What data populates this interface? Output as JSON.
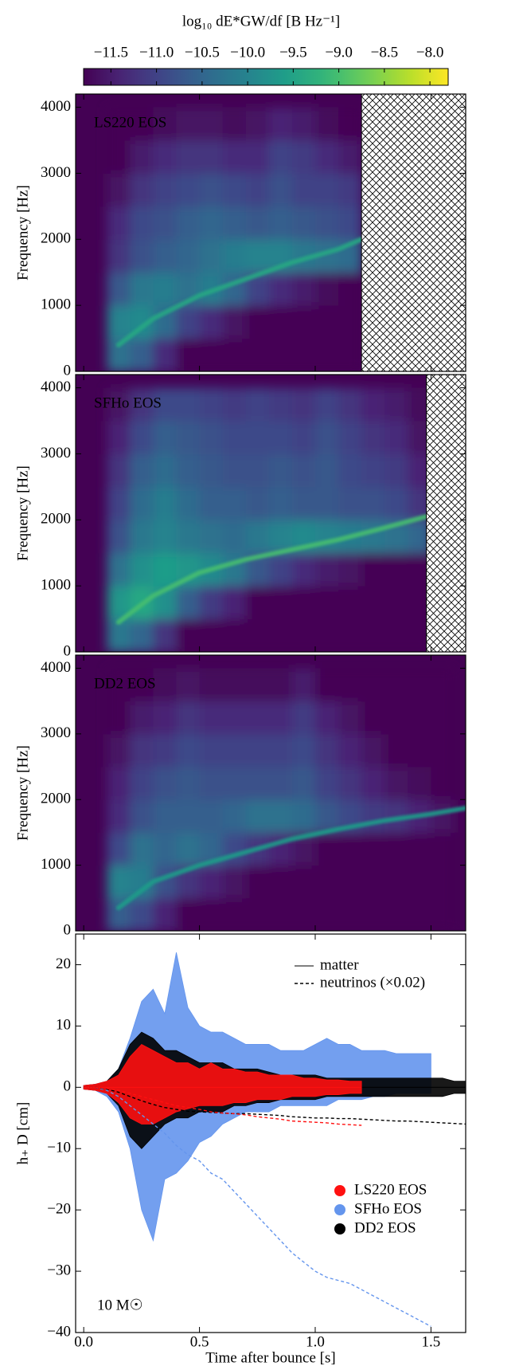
{
  "colorbar": {
    "label": "log₁₀ dE*GW/df [B Hz⁻¹]",
    "lim": [
      -11.8,
      -7.8
    ],
    "ticks": [
      {
        "value": -11.5,
        "label": "−11.5"
      },
      {
        "value": -11.0,
        "label": "−11.0"
      },
      {
        "value": -10.5,
        "label": "−10.5"
      },
      {
        "value": -10.0,
        "label": "−10.0"
      },
      {
        "value": -9.5,
        "label": "−9.5"
      },
      {
        "value": -9.0,
        "label": "−9.0"
      },
      {
        "value": -8.5,
        "label": "−8.5"
      },
      {
        "value": -8.0,
        "label": "−8.0"
      }
    ]
  },
  "chart_data": [
    {
      "type": "heatmap",
      "title": "LS220 EOS",
      "ylabel": "Frequency [Hz]",
      "xlim": [
        -0.035,
        1.65
      ],
      "xticks": [
        0,
        0.5,
        1,
        1.5
      ],
      "ylim": [
        0,
        4200
      ],
      "yticks": [
        0,
        1000,
        2000,
        3000,
        4000
      ],
      "x_bins": [
        0.1,
        0.2,
        0.3,
        0.4,
        0.5,
        0.6,
        0.7,
        0.8,
        0.9,
        1.0,
        1.1,
        1.2,
        1.3,
        1.4,
        1.5,
        1.6
      ],
      "y_bins": [
        0,
        500,
        1000,
        1500,
        2000,
        2500,
        3000,
        3500,
        4000
      ],
      "z": [
        [
          -10.3,
          -10.6,
          -11.3,
          -11.8,
          -11.8,
          -11.8,
          -11.8,
          -11.8,
          -11.8,
          -11.8,
          -11.8,
          null,
          null,
          null,
          null
        ],
        [
          -10.0,
          -9.9,
          -10.4,
          -11.0,
          -11.3,
          -11.6,
          -11.8,
          -11.8,
          -11.8,
          -11.8,
          -11.8,
          null,
          null,
          null,
          null
        ],
        [
          -10.7,
          -10.2,
          -10.1,
          -10.3,
          -10.1,
          -10.5,
          -11.0,
          -11.3,
          -11.5,
          -11.7,
          -11.8,
          null,
          null,
          null,
          null
        ],
        [
          -11.2,
          -10.8,
          -10.6,
          -10.5,
          -10.3,
          -10.1,
          -10.0,
          -10.0,
          -10.2,
          -10.3,
          -10.4,
          null,
          null,
          null,
          null
        ],
        [
          -11.3,
          -10.9,
          -10.8,
          -10.6,
          -10.5,
          -10.6,
          -10.7,
          -10.6,
          -10.7,
          -10.8,
          -10.9,
          null,
          null,
          null,
          null
        ],
        [
          -11.6,
          -11.2,
          -11.0,
          -10.9,
          -10.8,
          -10.9,
          -11.0,
          -10.8,
          -11.0,
          -11.0,
          -11.1,
          null,
          null,
          null,
          null
        ],
        [
          -11.8,
          -11.5,
          -11.3,
          -11.2,
          -11.2,
          -11.3,
          -11.3,
          -11.0,
          -11.1,
          -11.3,
          -11.5,
          null,
          null,
          null,
          null
        ],
        [
          -11.8,
          -11.8,
          -11.7,
          -11.6,
          -11.6,
          -11.7,
          -11.6,
          -11.4,
          -11.5,
          -11.7,
          -11.8,
          null,
          null,
          null,
          null
        ]
      ],
      "ridge": {
        "z": -9.4,
        "x": [
          0.15,
          0.3,
          0.5,
          0.7,
          0.9,
          1.1,
          1.2
        ],
        "values": [
          400,
          800,
          1150,
          1400,
          1650,
          1850,
          2000
        ]
      },
      "hatch_from": 1.2
    },
    {
      "type": "heatmap",
      "title": "SFHo EOS",
      "ylabel": "Frequency [Hz]",
      "xlim": [
        -0.035,
        1.65
      ],
      "xticks": [
        0,
        0.5,
        1,
        1.5
      ],
      "ylim": [
        0,
        4200
      ],
      "yticks": [
        0,
        1000,
        2000,
        3000,
        4000
      ],
      "x_bins": [
        0.1,
        0.2,
        0.3,
        0.4,
        0.5,
        0.6,
        0.7,
        0.8,
        0.9,
        1.0,
        1.1,
        1.2,
        1.3,
        1.4,
        1.5,
        1.6
      ],
      "y_bins": [
        0,
        500,
        1000,
        1500,
        2000,
        2500,
        3000,
        3500,
        4000
      ],
      "z": [
        [
          -10.2,
          -10.5,
          -11.2,
          -11.8,
          -11.8,
          -11.8,
          -11.8,
          -11.8,
          -11.8,
          -11.8,
          -11.8,
          -11.8,
          -11.8,
          -11.8,
          null
        ],
        [
          -9.7,
          -9.4,
          -9.8,
          -10.6,
          -11.1,
          -11.4,
          -11.8,
          -11.8,
          -11.8,
          -11.8,
          -11.8,
          -11.8,
          -11.8,
          -11.8,
          null
        ],
        [
          -10.3,
          -9.8,
          -9.6,
          -9.7,
          -9.9,
          -10.2,
          -10.7,
          -11.0,
          -11.3,
          -11.5,
          -11.6,
          -11.8,
          -11.8,
          -11.8,
          null
        ],
        [
          -10.8,
          -10.2,
          -10.0,
          -10.2,
          -10.3,
          -10.4,
          -10.2,
          -10.0,
          -9.9,
          -10.0,
          -10.1,
          -10.2,
          -10.3,
          -10.5,
          null
        ],
        [
          -11.0,
          -10.4,
          -10.1,
          -10.4,
          -10.6,
          -10.6,
          -10.7,
          -10.6,
          -10.7,
          -10.7,
          -10.8,
          -10.8,
          -10.9,
          -11.2,
          null
        ],
        [
          -11.2,
          -10.6,
          -10.4,
          -10.6,
          -10.7,
          -10.8,
          -10.8,
          -10.7,
          -10.8,
          -10.7,
          -10.9,
          -11.0,
          -11.1,
          -11.4,
          null
        ],
        [
          -11.4,
          -10.9,
          -10.6,
          -10.7,
          -10.8,
          -10.9,
          -10.9,
          -10.9,
          -11.0,
          -10.8,
          -11.0,
          -11.2,
          -11.3,
          -11.6,
          null
        ],
        [
          -11.6,
          -11.2,
          -10.9,
          -10.9,
          -11.0,
          -11.1,
          -11.0,
          -11.1,
          -11.2,
          -11.0,
          -11.2,
          -11.4,
          -11.5,
          -11.7,
          null
        ]
      ],
      "ridge": {
        "z": -9.0,
        "x": [
          0.15,
          0.3,
          0.5,
          0.7,
          0.9,
          1.1,
          1.3,
          1.48
        ],
        "values": [
          450,
          850,
          1200,
          1400,
          1550,
          1700,
          1880,
          2050
        ]
      },
      "hatch_from": 1.48
    },
    {
      "type": "heatmap",
      "title": "DD2 EOS",
      "ylabel": "Frequency [Hz]",
      "xlim": [
        -0.035,
        1.65
      ],
      "xticks": [
        0,
        0.5,
        1,
        1.5
      ],
      "ylim": [
        0,
        4200
      ],
      "yticks": [
        0,
        1000,
        2000,
        3000,
        4000
      ],
      "x_bins": [
        0.1,
        0.2,
        0.3,
        0.4,
        0.5,
        0.6,
        0.7,
        0.8,
        0.9,
        1.0,
        1.1,
        1.2,
        1.3,
        1.4,
        1.5,
        1.6
      ],
      "y_bins": [
        0,
        500,
        1000,
        1500,
        2000,
        2500,
        3000,
        3500,
        4000
      ],
      "z": [
        [
          -10.6,
          -10.9,
          -11.4,
          -11.8,
          -11.8,
          -11.8,
          -11.8,
          -11.8,
          -11.8,
          -11.8,
          -11.8,
          -11.8,
          -11.8,
          -11.8,
          -11.8
        ],
        [
          -10.0,
          -10.1,
          -10.8,
          -11.2,
          -11.4,
          -11.6,
          -11.8,
          -11.8,
          -11.8,
          -11.8,
          -11.8,
          -11.8,
          -11.8,
          -11.8,
          -11.8
        ],
        [
          -10.9,
          -10.3,
          -10.5,
          -10.3,
          -10.5,
          -10.9,
          -11.2,
          -11.4,
          -11.6,
          -11.8,
          -11.8,
          -11.8,
          -11.8,
          -11.8,
          -11.8
        ],
        [
          -11.3,
          -10.8,
          -10.6,
          -10.6,
          -10.6,
          -10.5,
          -10.3,
          -10.3,
          -10.4,
          -10.7,
          -10.9,
          -11.1,
          -11.2,
          -11.4,
          -11.6
        ],
        [
          -11.4,
          -11.0,
          -10.8,
          -10.7,
          -10.8,
          -10.8,
          -10.8,
          -10.8,
          -10.7,
          -11.0,
          -11.2,
          -11.4,
          -11.6,
          -11.7,
          -11.8
        ],
        [
          -11.6,
          -11.2,
          -11.1,
          -10.9,
          -11.0,
          -11.0,
          -11.0,
          -11.0,
          -10.9,
          -11.2,
          -11.4,
          -11.6,
          -11.8,
          -11.8,
          -11.8
        ],
        [
          -11.8,
          -11.5,
          -11.4,
          -11.2,
          -11.3,
          -11.3,
          -11.3,
          -11.3,
          -11.1,
          -11.4,
          -11.6,
          -11.8,
          -11.8,
          -11.8,
          -11.8
        ],
        [
          -11.8,
          -11.8,
          -11.7,
          -11.6,
          -11.7,
          -11.7,
          -11.7,
          -11.7,
          -11.5,
          -11.8,
          -11.8,
          -11.8,
          -11.8,
          -11.8,
          -11.8
        ]
      ],
      "ridge": {
        "z": -9.6,
        "x": [
          0.15,
          0.3,
          0.5,
          0.7,
          0.9,
          1.1,
          1.3,
          1.5,
          1.65
        ],
        "values": [
          350,
          750,
          1000,
          1200,
          1400,
          1550,
          1680,
          1780,
          1870
        ]
      }
    },
    {
      "type": "waveform",
      "xlabel": "Time after bounce [s]",
      "ylabel": "h₊ D [cm]",
      "annotation": "10 M☉",
      "line_legend": [
        "matter",
        "neutrinos (×0.02)"
      ],
      "xlim": [
        -0.035,
        1.65
      ],
      "ylim": [
        -40,
        25
      ],
      "xticks": [
        {
          "value": 0,
          "label": "0.0"
        },
        0.5,
        {
          "value": 1,
          "label": "1.0"
        },
        1.5
      ],
      "yticks": [
        {
          "value": -40,
          "label": "−40"
        },
        {
          "value": -30,
          "label": "−30"
        },
        {
          "value": -20,
          "label": "−20"
        },
        {
          "value": -10,
          "label": "−10"
        },
        0,
        10,
        20
      ],
      "x": [
        0,
        0.05,
        0.1,
        0.15,
        0.2,
        0.25,
        0.3,
        0.35,
        0.4,
        0.45,
        0.5,
        0.55,
        0.6,
        0.65,
        0.7,
        0.75,
        0.8,
        0.85,
        0.9,
        0.95,
        1.0,
        1.05,
        1.1,
        1.15,
        1.2,
        1.25,
        1.3,
        1.35,
        1.4,
        1.45,
        1.5,
        1.55,
        1.6,
        1.65
      ],
      "series": [
        {
          "name": "LS220 EOS",
          "color": "#ff1010",
          "upper": [
            0.3,
            0.5,
            1,
            2,
            5,
            7,
            6,
            5,
            4,
            4,
            3,
            4,
            3,
            3,
            2.5,
            2.5,
            2,
            2,
            2,
            1.5,
            1.5,
            1.2,
            1.2,
            1,
            1,
            null,
            null,
            null,
            null,
            null,
            null,
            null,
            null,
            null
          ],
          "lower": [
            -0.3,
            -0.5,
            -1,
            -2.5,
            -5,
            -6,
            -6,
            -5,
            -4,
            -3.5,
            -3,
            -3,
            -3,
            -2.5,
            -2.5,
            -2,
            -2,
            -2,
            -1.5,
            -1.5,
            -1.5,
            -1.2,
            -1.2,
            -1,
            -1,
            null,
            null,
            null,
            null,
            null,
            null,
            null,
            null,
            null
          ],
          "neutrinos": [
            0,
            0,
            -0.2,
            -0.5,
            -1,
            -1.5,
            -2,
            -2.5,
            -3,
            -3.3,
            -3.6,
            -4,
            -4.2,
            -4.3,
            -4.5,
            -4.8,
            -5,
            -5.2,
            -5.5,
            -5.6,
            -5.7,
            -5.8,
            -6,
            -6.1,
            -6.2,
            null,
            null,
            null,
            null,
            null,
            null,
            null,
            null,
            null
          ]
        },
        {
          "name": "SFHo EOS",
          "color": "#6495ed",
          "upper": [
            0.3,
            0.5,
            1,
            3,
            8,
            14,
            16,
            12,
            22,
            13,
            10,
            9,
            9,
            8,
            7,
            7,
            7,
            6,
            6,
            6,
            7,
            8,
            7,
            7,
            6,
            6,
            6,
            5.5,
            5.5,
            5.5,
            5.5,
            null,
            null,
            null
          ],
          "lower": [
            -0.3,
            -0.5,
            -1.5,
            -4,
            -10,
            -20,
            -25,
            -15,
            -14,
            -12,
            -9,
            -8,
            -6,
            -5,
            -4,
            -4,
            -4,
            -3,
            -3,
            -3,
            -3,
            -3,
            -2,
            -2,
            -2,
            -1.5,
            -1.5,
            -1,
            -1,
            -1,
            -1,
            null,
            null,
            null
          ],
          "neutrinos": [
            0,
            0,
            -0.5,
            -1.5,
            -3,
            -4.5,
            -6,
            -7.5,
            -9.5,
            -11,
            -12,
            -14,
            -15,
            -17,
            -19,
            -21,
            -23,
            -25,
            -27,
            -28.5,
            -30,
            -31,
            -31.5,
            -32,
            -33,
            -34,
            -35,
            -36,
            -37,
            -38,
            -39,
            null,
            null,
            null
          ]
        },
        {
          "name": "DD2 EOS",
          "color": "#000000",
          "upper": [
            0.3,
            0.5,
            1,
            3,
            7,
            9,
            8,
            6,
            6,
            5,
            4,
            4,
            4,
            3,
            3,
            3,
            2.5,
            2,
            2,
            2,
            2,
            1.5,
            1.5,
            1.5,
            1.5,
            1.5,
            1.5,
            1.5,
            1.5,
            1.5,
            1.5,
            1.5,
            1,
            1
          ],
          "lower": [
            -0.3,
            -0.5,
            -1,
            -3,
            -8,
            -10,
            -8,
            -6,
            -5,
            -5,
            -4,
            -4,
            -4,
            -3,
            -3,
            -2.5,
            -2.5,
            -2,
            -2,
            -2,
            -2,
            -1.5,
            -1.5,
            -1.5,
            -1.5,
            -1.5,
            -1.5,
            -1.5,
            -1.5,
            -1.5,
            -1.5,
            -1.5,
            -1,
            -1
          ],
          "neutrinos": [
            0,
            0,
            -0.3,
            -0.8,
            -1.5,
            -2.2,
            -2.8,
            -3.3,
            -3.6,
            -3.9,
            -4,
            -4.1,
            -4.2,
            -4.3,
            -4.3,
            -4.4,
            -4.5,
            -4.6,
            -4.8,
            -4.9,
            -5,
            -5,
            -5.1,
            -5.1,
            -5.2,
            -5.3,
            -5.4,
            -5.5,
            -5.5,
            -5.6,
            -5.7,
            -5.8,
            -5.9,
            -6
          ]
        }
      ]
    }
  ]
}
